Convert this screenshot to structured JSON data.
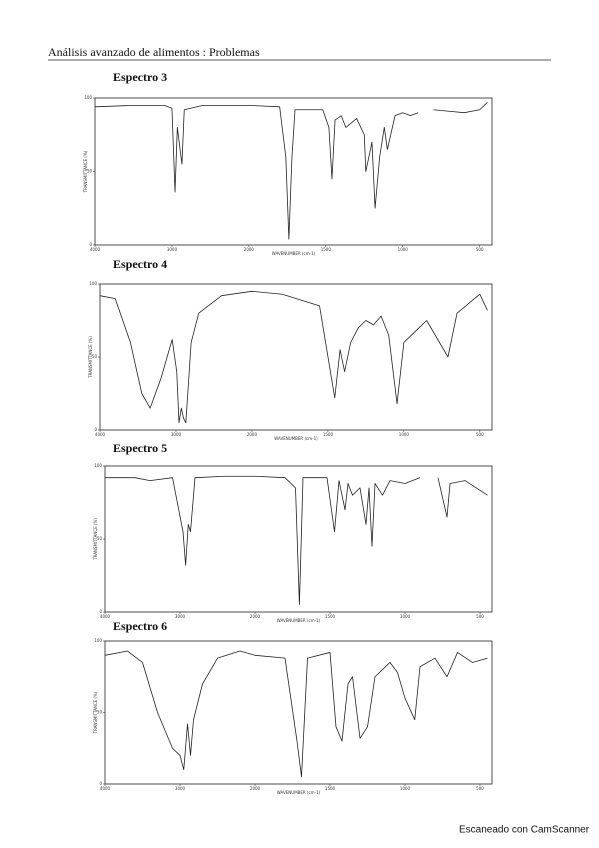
{
  "header": {
    "title": "Análisis avanzado de alimentos : Problemas"
  },
  "chart_data": [
    {
      "type": "line",
      "title": "Espectro 3",
      "xlabel": "WAVENUMBER (cm-1)",
      "ylabel": "TRANSMITTANCE (%)",
      "color": "#222222",
      "xlim": [
        4000,
        420
      ],
      "xticks": [
        4000,
        3000,
        2000,
        1500,
        1000,
        500
      ],
      "ylim": [
        0,
        100
      ],
      "yticks": [
        0,
        50,
        100
      ],
      "x": [
        4000,
        3500,
        3100,
        3000,
        2960,
        2930,
        2870,
        2840,
        2600,
        2200,
        2000,
        1800,
        1760,
        1740,
        1720,
        1700,
        1520,
        1480,
        1460,
        1440,
        1400,
        1370,
        1300,
        1250,
        1240,
        1200,
        1180,
        1150,
        1120,
        1100,
        1050,
        1000,
        950,
        900,
        850,
        800,
        700,
        600,
        500,
        450
      ],
      "values": [
        94,
        95,
        95,
        93,
        36,
        80,
        55,
        92,
        95,
        95,
        95,
        94,
        60,
        4,
        60,
        92,
        92,
        80,
        45,
        85,
        88,
        80,
        86,
        75,
        50,
        70,
        25,
        60,
        80,
        65,
        88,
        90,
        88,
        90,
        null,
        92,
        91,
        90,
        92,
        97
      ]
    },
    {
      "type": "line",
      "title": "Espectro 4",
      "xlabel": "WAVENUMBER (cm-1)",
      "ylabel": "TRANSMITTANCE (%)",
      "color": "#222222",
      "xlim": [
        4000,
        420
      ],
      "xticks": [
        4000,
        3000,
        2000,
        1500,
        1000,
        500
      ],
      "ylim": [
        0,
        100
      ],
      "yticks": [
        0,
        50,
        100
      ],
      "x": [
        4000,
        3800,
        3600,
        3450,
        3340,
        3200,
        3050,
        2990,
        2960,
        2930,
        2900,
        2870,
        2800,
        2700,
        2400,
        2000,
        1800,
        1555,
        1455,
        1420,
        1390,
        1350,
        1300,
        1250,
        1200,
        1150,
        1100,
        1045,
        1000,
        900,
        850,
        710,
        650,
        500,
        450
      ],
      "values": [
        92,
        90,
        60,
        25,
        15,
        35,
        62,
        40,
        5,
        15,
        8,
        5,
        60,
        80,
        92,
        95,
        93,
        85,
        22,
        55,
        40,
        60,
        70,
        75,
        72,
        78,
        65,
        18,
        60,
        70,
        75,
        50,
        80,
        93,
        82
      ]
    },
    {
      "type": "line",
      "title": "Espectro 5",
      "xlabel": "WAVENUMBER (cm-1)",
      "ylabel": "TRANSMITTANCE (%)",
      "color": "#222222",
      "xlim": [
        4000,
        420
      ],
      "xticks": [
        4000,
        3000,
        2000,
        1500,
        1000,
        500
      ],
      "ylim": [
        0,
        100
      ],
      "yticks": [
        0,
        50,
        100
      ],
      "x": [
        4000,
        3600,
        3400,
        3100,
        2960,
        2925,
        2890,
        2860,
        2800,
        2400,
        2000,
        1800,
        1730,
        1704,
        1680,
        1520,
        1470,
        1440,
        1400,
        1380,
        1350,
        1300,
        1260,
        1240,
        1220,
        1200,
        1150,
        1100,
        1000,
        900,
        850,
        780,
        720,
        700,
        600,
        450
      ],
      "values": [
        92,
        92,
        90,
        92,
        55,
        32,
        60,
        55,
        92,
        93,
        93,
        92,
        85,
        5,
        92,
        92,
        55,
        90,
        70,
        88,
        80,
        85,
        60,
        85,
        45,
        88,
        80,
        90,
        88,
        92,
        null,
        92,
        65,
        88,
        90,
        80
      ]
    },
    {
      "type": "line",
      "title": "Espectro 6",
      "xlabel": "WAVENUMBER (cm-1)",
      "ylabel": "TRANSMITTANCE (%)",
      "color": "#222222",
      "xlim": [
        4000,
        420
      ],
      "xticks": [
        4000,
        3000,
        2000,
        1500,
        1000,
        500
      ],
      "ylim": [
        0,
        100
      ],
      "yticks": [
        0,
        50,
        100
      ],
      "x": [
        4000,
        3700,
        3500,
        3300,
        3100,
        3000,
        2950,
        2900,
        2860,
        2820,
        2700,
        2500,
        2200,
        2000,
        1800,
        1720,
        1690,
        1650,
        1500,
        1460,
        1420,
        1380,
        1350,
        1300,
        1250,
        1200,
        1150,
        1100,
        1050,
        1000,
        935,
        900,
        800,
        720,
        650,
        550,
        450
      ],
      "values": [
        90,
        93,
        85,
        50,
        25,
        20,
        10,
        42,
        20,
        45,
        70,
        88,
        93,
        90,
        88,
        30,
        5,
        88,
        92,
        40,
        30,
        70,
        75,
        32,
        40,
        75,
        80,
        85,
        78,
        60,
        45,
        82,
        88,
        75,
        92,
        85,
        88
      ]
    }
  ],
  "footer": "Escaneado con CamScanner"
}
